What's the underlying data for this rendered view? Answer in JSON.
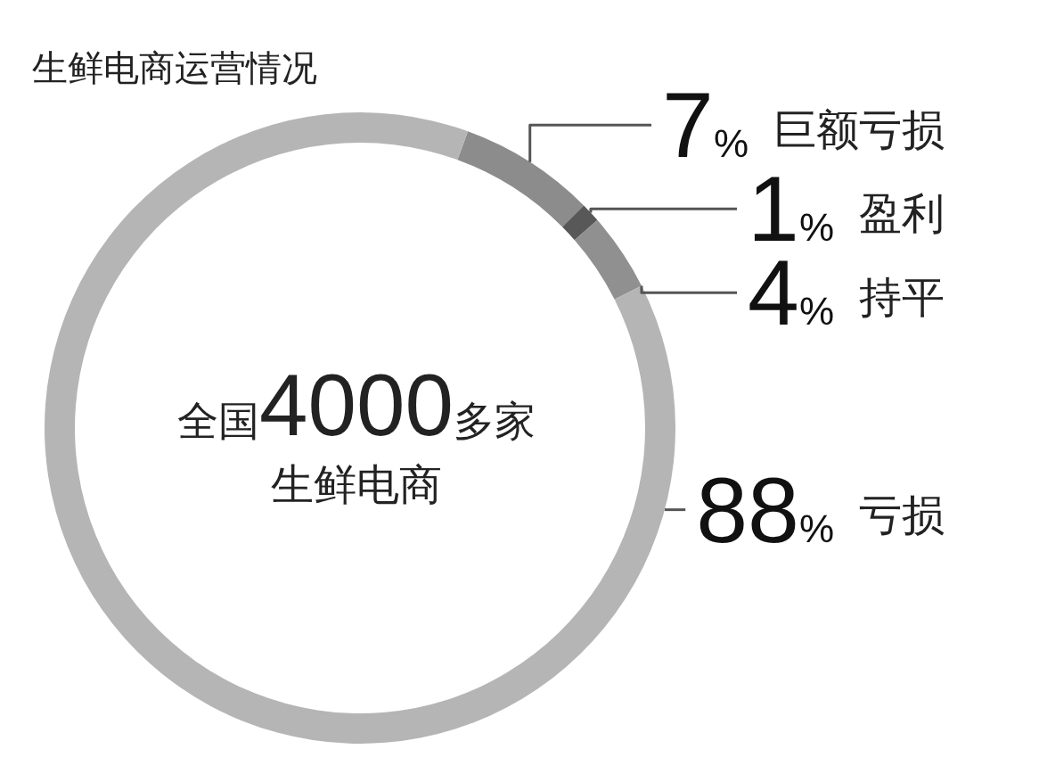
{
  "chart_data": {
    "type": "donut",
    "title": "生鲜电商运营情况",
    "categories": [
      "巨额亏损",
      "盈利",
      "持平",
      "亏损"
    ],
    "values": [
      7,
      1,
      4,
      88
    ],
    "colors": [
      "#8c8c8c",
      "#585858",
      "#909090",
      "#b5b5b5"
    ],
    "value_labels": [
      "7%",
      "1%",
      "4%",
      "88%"
    ],
    "annotations": [
      "全国4000多家",
      "生鲜电商"
    ]
  }
}
